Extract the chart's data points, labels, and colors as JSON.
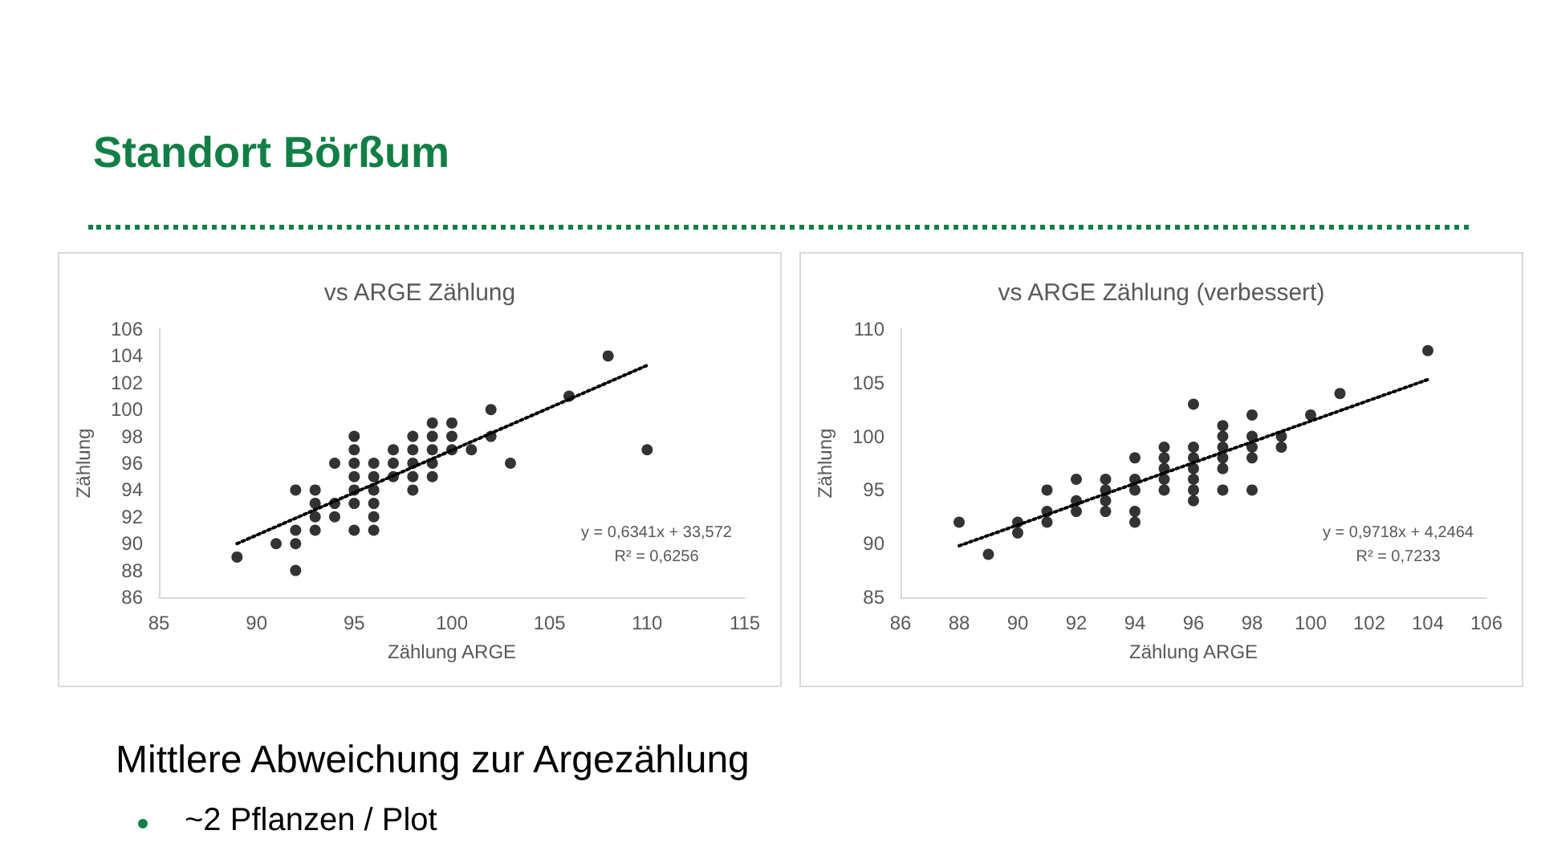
{
  "chart_data": [
    {
      "type": "other",
      "title": "Standort Börßum",
      "annotations": [
        "Mittlere Abweichung zur Argezählung",
        "~2 Pflanzen / Plot"
      ]
    },
    {
      "type": "scatter",
      "title": "vs ARGE Zählung",
      "xlabel": "Zählung ARGE",
      "ylabel": "Zählung",
      "xlim": [
        85,
        115
      ],
      "xticks": [
        85,
        90,
        95,
        100,
        105,
        110,
        115
      ],
      "ylim": [
        86,
        106
      ],
      "yticks": [
        86,
        88,
        90,
        92,
        94,
        96,
        98,
        100,
        102,
        104,
        106
      ],
      "series": [
        {
          "type": "scatter",
          "color": "#000000",
          "marker": "circle",
          "x": [
            89,
            91,
            92,
            92,
            92,
            92,
            93,
            93,
            93,
            93,
            94,
            94,
            94,
            95,
            95,
            95,
            95,
            95,
            95,
            95,
            96,
            96,
            96,
            96,
            96,
            96,
            97,
            97,
            97,
            98,
            98,
            98,
            98,
            98,
            99,
            99,
            99,
            99,
            99,
            100,
            100,
            100,
            101,
            102,
            102,
            103,
            106,
            108,
            110
          ],
          "values": [
            89,
            90,
            94,
            91,
            90,
            88,
            94,
            93,
            92,
            91,
            96,
            93,
            92,
            98,
            97,
            96,
            95,
            94,
            93,
            91,
            96,
            95,
            94,
            93,
            92,
            91,
            97,
            96,
            95,
            98,
            97,
            96,
            95,
            94,
            99,
            98,
            97,
            96,
            95,
            99,
            98,
            97,
            97,
            100,
            98,
            96,
            101,
            104,
            97
          ]
        },
        {
          "type": "line",
          "color": "#000000",
          "marker": "none",
          "line_style": "dotted",
          "x": [
            89,
            110
          ],
          "values": [
            90.0,
            103.3
          ]
        }
      ],
      "annotations": [
        "y = 0,6341x + 33,572",
        "R² = 0,6256"
      ]
    },
    {
      "type": "scatter",
      "title": "vs ARGE Zählung (verbessert)",
      "xlabel": "Zählung ARGE",
      "ylabel": "Zählung",
      "xlim": [
        86,
        106
      ],
      "xticks": [
        86,
        88,
        90,
        92,
        94,
        96,
        98,
        100,
        102,
        104,
        106
      ],
      "ylim": [
        85,
        110
      ],
      "yticks": [
        85,
        90,
        95,
        100,
        105,
        110
      ],
      "series": [
        {
          "type": "scatter",
          "color": "#000000",
          "marker": "circle",
          "x": [
            88,
            89,
            90,
            90,
            91,
            91,
            91,
            92,
            92,
            92,
            93,
            93,
            93,
            93,
            94,
            94,
            94,
            94,
            94,
            95,
            95,
            95,
            95,
            95,
            96,
            96,
            96,
            96,
            96,
            96,
            96,
            97,
            97,
            97,
            97,
            97,
            97,
            98,
            98,
            98,
            98,
            98,
            99,
            99,
            100,
            101,
            104
          ],
          "values": [
            92,
            89,
            92,
            91,
            95,
            93,
            92,
            96,
            94,
            93,
            96,
            95,
            94,
            93,
            98,
            96,
            95,
            93,
            92,
            99,
            98,
            97,
            96,
            95,
            103,
            99,
            98,
            97,
            96,
            95,
            94,
            101,
            100,
            99,
            98,
            97,
            95,
            102,
            100,
            99,
            98,
            95,
            100,
            99,
            102,
            104,
            108
          ]
        },
        {
          "type": "line",
          "color": "#000000",
          "marker": "none",
          "line_style": "dotted",
          "x": [
            88,
            104
          ],
          "values": [
            89.8,
            105.3
          ]
        }
      ],
      "annotations": [
        "y = 0,9718x + 4,2464",
        "R² = 0,7233"
      ]
    }
  ]
}
